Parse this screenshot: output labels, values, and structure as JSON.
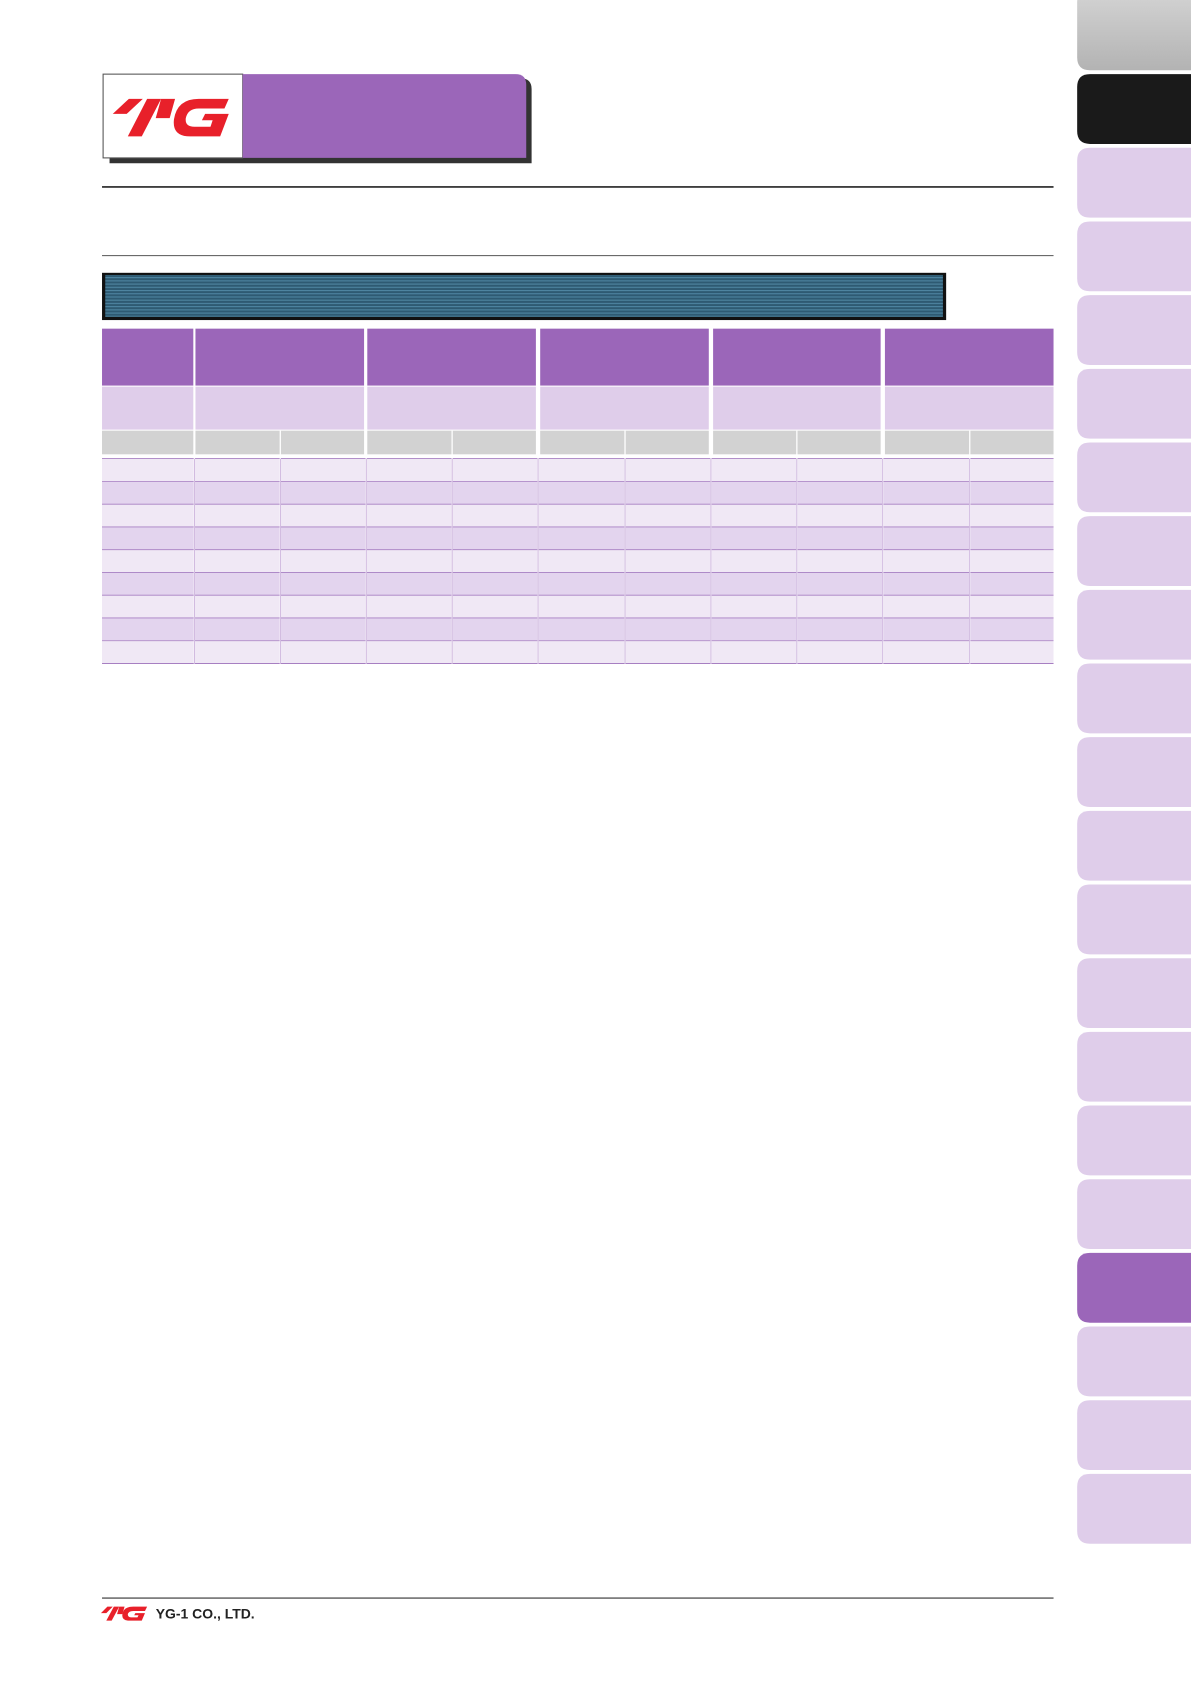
{
  "footer": {
    "company": "YG-1 CO., LTD."
  }
}
